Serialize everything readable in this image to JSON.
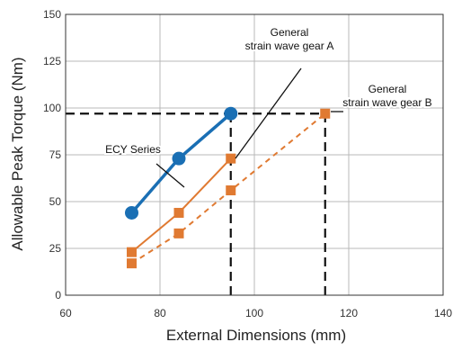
{
  "chart_data": {
    "type": "line",
    "xlabel": "External Dimensions (mm)",
    "ylabel": "Allowable Peak Torque (Nm)",
    "xlim": [
      60,
      140
    ],
    "ylim": [
      0,
      150
    ],
    "x_ticks": [
      "60",
      "80",
      "100",
      "120",
      "140"
    ],
    "y_ticks": [
      "0",
      "25",
      "50",
      "75",
      "100",
      "125",
      "150"
    ],
    "grid": true,
    "series": [
      {
        "name": "ECY Series",
        "color": "#1a6fb4",
        "marker": "circle",
        "line_style": "solid",
        "x": [
          74,
          84,
          95
        ],
        "y": [
          44,
          73,
          97
        ]
      },
      {
        "name": "General strain wave gear A",
        "color": "#e07a32",
        "marker": "square",
        "line_style": "solid",
        "x": [
          74,
          84,
          95
        ],
        "y": [
          23,
          44,
          73
        ]
      },
      {
        "name": "General strain wave gear B",
        "color": "#e07a32",
        "marker": "square",
        "line_style": "dashed",
        "x": [
          74,
          84,
          95,
          115
        ],
        "y": [
          17,
          33,
          56,
          97
        ]
      }
    ],
    "reference_lines": [
      {
        "type": "horizontal",
        "y": 97,
        "x_from": 60,
        "x_to": 115,
        "style": "dashed",
        "color": "#111111"
      },
      {
        "type": "vertical",
        "x": 95,
        "y_from": 0,
        "y_to": 97,
        "style": "dashed",
        "color": "#111111"
      },
      {
        "type": "vertical",
        "x": 115,
        "y_from": 0,
        "y_to": 97,
        "style": "dashed",
        "color": "#111111"
      }
    ],
    "annotations": [
      {
        "lines": [
          "ECY Series"
        ],
        "anchor_x": 81,
        "anchor_y": 67
      },
      {
        "lines": [
          "General",
          "strain wave gear A"
        ],
        "anchor_x": 95,
        "anchor_y": 72
      },
      {
        "lines": [
          "General",
          "strain wave gear B"
        ],
        "anchor_x": 115,
        "anchor_y": 97
      }
    ]
  }
}
